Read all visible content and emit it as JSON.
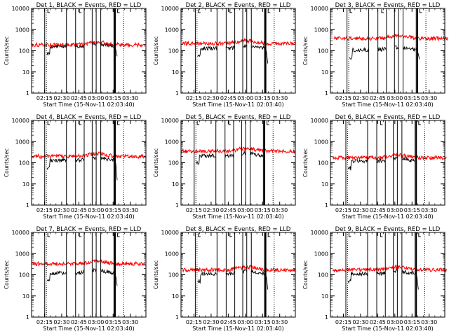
{
  "chart_data": [
    {
      "type": "line",
      "title": "Det 1, BLACK = Events, RED = LLD",
      "xlabel": "Start Time (15-Nov-11 02:03:40)",
      "ylabel": "Counts/sec",
      "x_ticks": [
        "02:15",
        "02:30",
        "02:45",
        "03:00",
        "03:15",
        "03:30"
      ],
      "y_ticks": [
        "1",
        "10",
        "100",
        "1000",
        "10000"
      ],
      "ylim": [
        1,
        10000
      ],
      "yscale": "log",
      "series": [
        {
          "color": "#000000",
          "level": 160,
          "drop": 55
        },
        {
          "color": "#ff0000",
          "level": 190,
          "drop": null
        }
      ]
    },
    {
      "type": "line",
      "title": "Det 2, BLACK = Events, RED = LLD",
      "xlabel": "Start Time (15-Nov-11 02:03:40)",
      "ylabel": "Counts/sec",
      "x_ticks": [
        "02:15",
        "02:30",
        "02:45",
        "03:00",
        "03:15",
        "03:30"
      ],
      "y_ticks": [
        "1",
        "10",
        "100",
        "1000",
        "10000"
      ],
      "ylim": [
        1,
        10000
      ],
      "yscale": "log",
      "series": [
        {
          "color": "#000000",
          "level": 130,
          "drop": 25
        },
        {
          "color": "#ff0000",
          "level": 220,
          "drop": null
        }
      ]
    },
    {
      "type": "line",
      "title": "Det 3, BLACK = Events, RED = LLD",
      "xlabel": "Start Time (15-Nov-11 02:03:40)",
      "ylabel": "Counts/sec",
      "x_ticks": [
        "02:15",
        "02:30",
        "02:45",
        "03:00",
        "03:15",
        "03:30"
      ],
      "y_ticks": [
        "1",
        "10",
        "100",
        "1000",
        "10000"
      ],
      "ylim": [
        1,
        10000
      ],
      "yscale": "log",
      "series": [
        {
          "color": "#000000",
          "level": 110,
          "drop": 40
        },
        {
          "color": "#ff0000",
          "level": 380,
          "drop": null
        }
      ]
    },
    {
      "type": "line",
      "title": "Det 4, BLACK = Events, RED = LLD",
      "xlabel": "Start Time (15-Nov-11 02:03:40)",
      "ylabel": "Counts/sec",
      "x_ticks": [
        "02:15",
        "02:30",
        "02:45",
        "03:00",
        "03:15",
        "03:30"
      ],
      "y_ticks": [
        "1",
        "10",
        "100",
        "1000",
        "10000"
      ],
      "ylim": [
        1,
        10000
      ],
      "yscale": "log",
      "series": [
        {
          "color": "#000000",
          "level": 130,
          "drop": 15
        },
        {
          "color": "#ff0000",
          "level": 200,
          "drop": null
        }
      ]
    },
    {
      "type": "line",
      "title": "Det 5, BLACK = Events, RED = LLD",
      "xlabel": "Start Time (15-Nov-11 02:03:40)",
      "ylabel": "Counts/sec",
      "x_ticks": [
        "02:15",
        "02:30",
        "02:45",
        "03:00",
        "03:15",
        "03:30"
      ],
      "y_ticks": [
        "1",
        "10",
        "100",
        "1000",
        "10000"
      ],
      "ylim": [
        1,
        10000
      ],
      "yscale": "log",
      "series": [
        {
          "color": "#000000",
          "level": 210,
          "drop": null
        },
        {
          "color": "#ff0000",
          "level": 350,
          "drop": null
        }
      ]
    },
    {
      "type": "line",
      "title": "Det 6, BLACK = Events, RED = LLD",
      "xlabel": "Start Time (15-Nov-11 02:03:40)",
      "ylabel": "Counts/sec",
      "x_ticks": [
        "02:15",
        "02:30",
        "02:45",
        "03:00",
        "03:15",
        "03:30"
      ],
      "y_ticks": [
        "1",
        "10",
        "100",
        "1000",
        "10000"
      ],
      "ylim": [
        1,
        10000
      ],
      "yscale": "log",
      "series": [
        {
          "color": "#000000",
          "level": 120,
          "drop": null
        },
        {
          "color": "#ff0000",
          "level": 170,
          "drop": null
        }
      ]
    },
    {
      "type": "line",
      "title": "Det 7, BLACK = Events, RED = LLD",
      "xlabel": "Start Time (15-Nov-11 02:03:40)",
      "ylabel": "Counts/sec",
      "x_ticks": [
        "02:15",
        "02:30",
        "02:45",
        "03:00",
        "03:15",
        "03:30"
      ],
      "y_ticks": [
        "1",
        "10",
        "100",
        "1000",
        "10000"
      ],
      "ylim": [
        1,
        10000
      ],
      "yscale": "log",
      "series": [
        {
          "color": "#000000",
          "level": 120,
          "drop": 30
        },
        {
          "color": "#ff0000",
          "level": 330,
          "drop": null
        }
      ]
    },
    {
      "type": "line",
      "title": "Det 8, BLACK = Events, RED = LLD",
      "xlabel": "Start Time (15-Nov-11 02:03:40)",
      "ylabel": "Counts/sec",
      "x_ticks": [
        "02:15",
        "02:30",
        "02:45",
        "03:00",
        "03:15",
        "03:30"
      ],
      "y_ticks": [
        "1",
        "10",
        "100",
        "1000",
        "10000"
      ],
      "ylim": [
        1,
        10000
      ],
      "yscale": "log",
      "series": [
        {
          "color": "#000000",
          "level": 110,
          "drop": 20
        },
        {
          "color": "#ff0000",
          "level": 170,
          "drop": null
        }
      ]
    },
    {
      "type": "line",
      "title": "Det 9, BLACK = Events, RED = LLD",
      "xlabel": "Start Time (15-Nov-11 02:03:40)",
      "ylabel": "Counts/sec",
      "x_ticks": [
        "02:15",
        "02:30",
        "02:45",
        "03:00",
        "03:15",
        "03:30"
      ],
      "y_ticks": [
        "1",
        "10",
        "100",
        "1000",
        "10000"
      ],
      "ylim": [
        1,
        10000
      ],
      "yscale": "log",
      "series": [
        {
          "color": "#000000",
          "level": 110,
          "drop": 20
        },
        {
          "color": "#ff0000",
          "level": 170,
          "drop": null
        }
      ]
    }
  ]
}
